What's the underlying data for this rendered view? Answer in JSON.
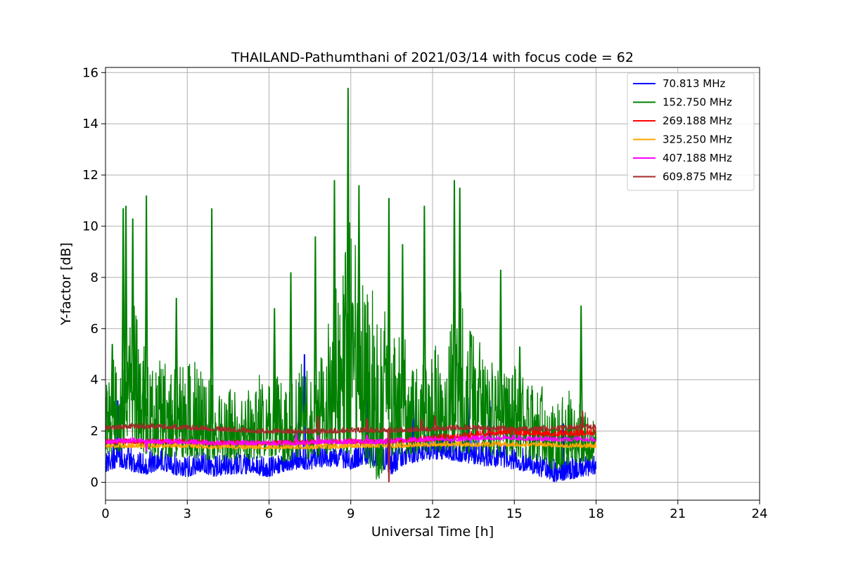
{
  "chart_data": {
    "type": "line",
    "title": "THAILAND-Pathumthani of 2021/03/14 with focus code = 62",
    "xlabel": "Universal Time [h]",
    "ylabel": "Y-factor [dB]",
    "xlim": [
      0,
      24
    ],
    "ylim": [
      -0.7,
      16.2
    ],
    "xticks": [
      0,
      3,
      6,
      9,
      12,
      15,
      18,
      21,
      24
    ],
    "yticks": [
      0,
      2,
      4,
      6,
      8,
      10,
      12,
      14,
      16
    ],
    "xtick_labels": [
      "0",
      "3",
      "6",
      "9",
      "12",
      "15",
      "18",
      "21",
      "24"
    ],
    "ytick_labels": [
      "0",
      "2",
      "4",
      "6",
      "8",
      "10",
      "12",
      "14",
      "16"
    ],
    "grid": true,
    "legend_position": "top-right",
    "series": [
      {
        "name": " 70.813 MHz",
        "color": "#0000ff",
        "x": [
          0,
          0.5,
          1,
          1.5,
          2,
          2.5,
          3,
          3.5,
          4,
          4.5,
          5,
          5.5,
          6,
          6.5,
          7,
          7.5,
          8,
          8.5,
          9,
          9.5,
          10,
          10.5,
          11,
          11.5,
          12,
          12.5,
          13,
          13.5,
          14,
          14.5,
          15,
          15.5,
          16,
          16.5,
          17,
          17.5,
          18
        ],
        "y": [
          0.7,
          1.0,
          0.7,
          0.6,
          0.9,
          0.6,
          0.5,
          0.8,
          0.4,
          0.7,
          0.5,
          0.6,
          0.5,
          0.7,
          0.9,
          0.8,
          1.0,
          0.9,
          1.0,
          1.1,
          1.0,
          0.9,
          1.1,
          1.2,
          1.3,
          1.3,
          1.2,
          1.1,
          1.0,
          1.0,
          0.9,
          0.7,
          0.5,
          0.3,
          0.4,
          0.5,
          0.6
        ],
        "low": [
          0.4,
          0.6,
          0.4,
          0.3,
          0.5,
          0.3,
          0.2,
          0.4,
          0.2,
          0.3,
          0.3,
          0.3,
          0.2,
          0.4,
          0.5,
          0.5,
          0.6,
          0.6,
          0.5,
          0.7,
          0.6,
          0.3,
          0.7,
          0.8,
          0.9,
          0.9,
          0.8,
          0.7,
          0.6,
          0.6,
          0.5,
          0.4,
          0.2,
          0.0,
          0.1,
          0.2,
          0.3
        ],
        "high": [
          1.4,
          1.5,
          1.3,
          1.2,
          1.4,
          1.2,
          1.0,
          1.3,
          1.0,
          1.2,
          1.1,
          1.1,
          1.0,
          1.2,
          1.4,
          1.3,
          1.6,
          1.5,
          1.6,
          1.6,
          1.7,
          1.6,
          1.7,
          1.8,
          1.9,
          1.9,
          1.8,
          1.7,
          1.6,
          1.6,
          1.5,
          1.3,
          1.1,
          0.9,
          1.0,
          1.1,
          1.1
        ],
        "spikes": [
          [
            0.45,
            3.2
          ],
          [
            7.1,
            3.9
          ],
          [
            7.3,
            5.0
          ],
          [
            9.6,
            3.5
          ],
          [
            11.3,
            3.2
          ],
          [
            13.3,
            3.3
          ],
          [
            14.1,
            3.2
          ],
          [
            16.8,
            2.3
          ]
        ]
      },
      {
        "name": "152.750 MHz",
        "color": "#008000",
        "x": [
          0,
          0.5,
          1,
          1.5,
          2,
          2.5,
          3,
          3.5,
          4,
          4.5,
          5,
          5.5,
          6,
          6.5,
          7,
          7.5,
          8,
          8.5,
          9,
          9.5,
          10,
          10.5,
          11,
          11.5,
          12,
          12.5,
          13,
          13.5,
          14,
          14.5,
          15,
          15.5,
          16,
          16.5,
          17,
          17.5,
          18
        ],
        "y": [
          2.2,
          3.0,
          3.2,
          2.6,
          2.4,
          2.8,
          2.5,
          2.2,
          2.3,
          2.0,
          2.1,
          2.2,
          2.4,
          2.1,
          2.4,
          2.2,
          2.6,
          3.6,
          4.0,
          3.2,
          3.1,
          2.8,
          2.9,
          2.6,
          2.8,
          2.6,
          3.2,
          2.8,
          2.6,
          2.4,
          2.5,
          2.2,
          2.1,
          1.9,
          2.0,
          2.0,
          1.9
        ],
        "low": [
          1.0,
          1.2,
          1.5,
          1.1,
          0.9,
          1.0,
          0.9,
          0.8,
          0.9,
          0.8,
          0.9,
          0.9,
          1.0,
          0.8,
          0.9,
          0.9,
          1.0,
          1.2,
          1.1,
          1.0,
          0.0,
          1.0,
          1.1,
          1.1,
          1.2,
          1.1,
          1.2,
          1.1,
          1.1,
          1.0,
          1.0,
          0.9,
          0.8,
          0.4,
          0.7,
          0.8,
          0.9
        ],
        "high": [
          4.0,
          5.5,
          7.3,
          5.0,
          4.8,
          4.5,
          5.0,
          4.6,
          3.8,
          3.6,
          3.8,
          4.2,
          4.6,
          3.9,
          5.0,
          4.2,
          6.0,
          8.2,
          10.5,
          8.3,
          7.0,
          6.8,
          5.8,
          4.5,
          5.5,
          4.8,
          9.0,
          6.0,
          5.0,
          4.2,
          4.6,
          3.8,
          3.8,
          3.0,
          3.6,
          3.4,
          2.4
        ],
        "spikes": [
          [
            0.25,
            5.4
          ],
          [
            0.65,
            10.7
          ],
          [
            0.75,
            10.8
          ],
          [
            1.0,
            10.3
          ],
          [
            1.5,
            11.2
          ],
          [
            2.6,
            7.2
          ],
          [
            3.9,
            10.7
          ],
          [
            6.2,
            6.8
          ],
          [
            6.8,
            8.2
          ],
          [
            7.7,
            9.6
          ],
          [
            8.4,
            11.8
          ],
          [
            8.9,
            15.4
          ],
          [
            9.3,
            11.6
          ],
          [
            10.4,
            11.1
          ],
          [
            10.9,
            9.3
          ],
          [
            11.7,
            10.8
          ],
          [
            12.8,
            11.8
          ],
          [
            13.0,
            11.5
          ],
          [
            14.5,
            8.3
          ],
          [
            15.2,
            5.3
          ],
          [
            17.45,
            6.9
          ]
        ]
      },
      {
        "name": "269.188 MHz",
        "color": "#ff0000",
        "x": [
          0,
          1,
          2,
          3,
          4,
          5,
          6,
          7,
          8,
          9,
          10,
          11,
          12,
          13,
          14,
          15,
          16,
          17,
          18
        ],
        "y": [
          1.6,
          1.6,
          1.6,
          1.6,
          1.55,
          1.55,
          1.55,
          1.55,
          1.6,
          1.6,
          1.6,
          1.65,
          1.7,
          1.8,
          1.9,
          2.0,
          1.9,
          1.9,
          2.0
        ],
        "low": [
          1.5,
          1.5,
          1.5,
          1.5,
          1.45,
          1.45,
          1.45,
          1.45,
          1.5,
          1.5,
          1.5,
          1.55,
          1.6,
          1.7,
          1.8,
          1.85,
          1.8,
          1.8,
          1.85
        ],
        "high": [
          1.7,
          1.7,
          1.7,
          1.7,
          1.65,
          1.65,
          1.65,
          1.65,
          1.7,
          1.7,
          1.7,
          1.75,
          1.85,
          1.95,
          2.05,
          2.15,
          2.05,
          2.05,
          2.15
        ],
        "spikes": []
      },
      {
        "name": "325.250 MHz",
        "color": "#ffa500",
        "x": [
          0,
          1,
          2,
          3,
          4,
          5,
          6,
          7,
          8,
          9,
          10,
          11,
          12,
          13,
          14,
          15,
          16,
          17,
          18
        ],
        "y": [
          1.45,
          1.45,
          1.45,
          1.45,
          1.4,
          1.4,
          1.4,
          1.4,
          1.4,
          1.45,
          1.45,
          1.45,
          1.5,
          1.5,
          1.5,
          1.5,
          1.5,
          1.45,
          1.45
        ],
        "low": [
          1.35,
          1.35,
          1.35,
          1.35,
          1.3,
          1.3,
          1.3,
          1.3,
          1.3,
          1.35,
          1.35,
          1.35,
          1.4,
          1.4,
          1.4,
          1.4,
          1.4,
          1.35,
          1.35
        ],
        "high": [
          1.55,
          1.55,
          1.55,
          1.55,
          1.5,
          1.5,
          1.5,
          1.5,
          1.5,
          1.55,
          1.55,
          1.55,
          1.6,
          1.6,
          1.6,
          1.6,
          1.6,
          1.55,
          1.55
        ],
        "spikes": []
      },
      {
        "name": "407.188 MHz",
        "color": "#ff00ff",
        "x": [
          0,
          1,
          2,
          3,
          4,
          5,
          6,
          7,
          8,
          9,
          10,
          11,
          12,
          13,
          14,
          15,
          16,
          17,
          18
        ],
        "y": [
          1.6,
          1.65,
          1.6,
          1.6,
          1.55,
          1.55,
          1.55,
          1.55,
          1.6,
          1.6,
          1.6,
          1.65,
          1.7,
          1.7,
          1.75,
          1.75,
          1.7,
          1.7,
          1.7
        ],
        "low": [
          1.5,
          1.55,
          1.5,
          1.5,
          1.45,
          1.45,
          1.45,
          1.45,
          1.5,
          1.5,
          1.5,
          1.55,
          1.6,
          1.6,
          1.65,
          1.65,
          1.6,
          1.6,
          1.6
        ],
        "high": [
          1.7,
          1.75,
          1.7,
          1.7,
          1.65,
          1.65,
          1.65,
          1.65,
          1.7,
          1.7,
          1.7,
          1.75,
          1.8,
          1.8,
          1.85,
          1.85,
          1.8,
          1.8,
          1.8
        ],
        "spikes": [
          [
            1.5,
            1.2
          ],
          [
            7.0,
            1.9
          ],
          [
            7.8,
            1.85
          ],
          [
            9.6,
            1.85
          ]
        ]
      },
      {
        "name": "609.875 MHz",
        "color": "#a52a2a",
        "x": [
          0,
          1,
          2,
          3,
          4,
          5,
          6,
          7,
          8,
          9,
          10,
          11,
          12,
          13,
          14,
          15,
          16,
          17,
          18
        ],
        "y": [
          2.15,
          2.2,
          2.2,
          2.15,
          2.1,
          2.05,
          2.0,
          2.0,
          2.0,
          2.05,
          2.05,
          2.05,
          2.1,
          2.15,
          2.15,
          2.1,
          2.1,
          2.15,
          2.2
        ],
        "low": [
          2.05,
          2.1,
          2.1,
          2.05,
          2.0,
          1.95,
          1.9,
          1.9,
          1.9,
          1.95,
          1.95,
          1.95,
          2.0,
          2.05,
          2.05,
          2.0,
          2.0,
          2.05,
          2.1
        ],
        "high": [
          2.25,
          2.3,
          2.3,
          2.25,
          2.2,
          2.15,
          2.1,
          2.1,
          2.1,
          2.15,
          2.15,
          2.15,
          2.2,
          2.25,
          2.25,
          2.2,
          2.2,
          2.25,
          2.3
        ],
        "spikes": [
          [
            7.8,
            2.6
          ],
          [
            9.6,
            2.5
          ],
          [
            10.4,
            0.0
          ],
          [
            11.6,
            2.5
          ],
          [
            12.1,
            2.6
          ],
          [
            17.5,
            2.8
          ]
        ]
      }
    ]
  }
}
